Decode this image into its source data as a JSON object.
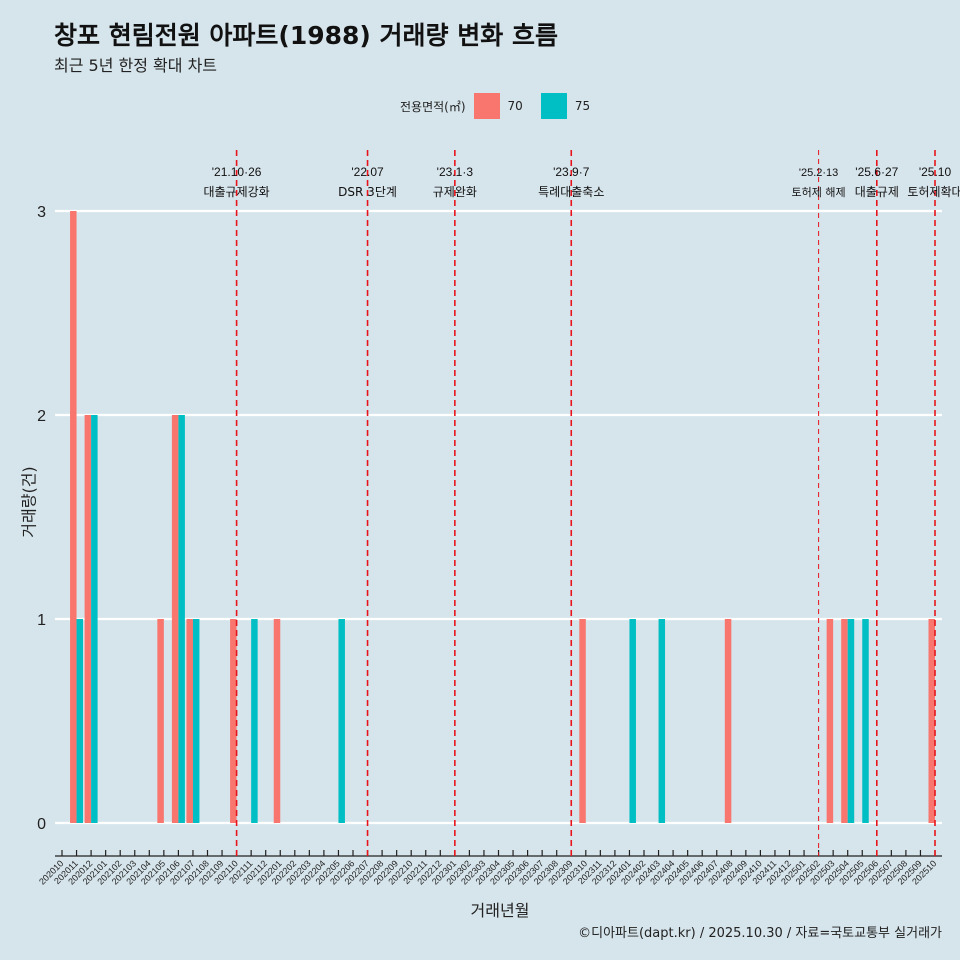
{
  "chart_data": {
    "type": "bar",
    "title": "창포 현림전원 아파트(1988) 거래량 변화 흐름",
    "subtitle": "최근 5년 한정 확대 차트",
    "xlabel": "거래년월",
    "ylabel": "거래량(건)",
    "ylim": [
      0,
      3
    ],
    "yticks": [
      "0",
      "1",
      "2",
      "3"
    ],
    "legend": {
      "title": "전용면적(㎡)",
      "placement": "top"
    },
    "categories": [
      "202010",
      "202011",
      "202012",
      "202101",
      "202102",
      "202103",
      "202104",
      "202105",
      "202106",
      "202107",
      "202108",
      "202109",
      "202110",
      "202111",
      "202112",
      "202201",
      "202202",
      "202203",
      "202204",
      "202205",
      "202206",
      "202207",
      "202208",
      "202209",
      "202210",
      "202211",
      "202212",
      "202301",
      "202302",
      "202303",
      "202304",
      "202305",
      "202306",
      "202307",
      "202308",
      "202309",
      "202310",
      "202311",
      "202312",
      "202401",
      "202402",
      "202403",
      "202404",
      "202405",
      "202406",
      "202407",
      "202408",
      "202409",
      "202410",
      "202411",
      "202412",
      "202501",
      "202502",
      "202503",
      "202504",
      "202505",
      "202506",
      "202507",
      "202508",
      "202509",
      "202510"
    ],
    "series": [
      {
        "name": "70",
        "color": "#f8766d",
        "values": [
          0,
          3,
          2,
          0,
          0,
          0,
          0,
          1,
          2,
          1,
          0,
          0,
          1,
          0,
          0,
          1,
          0,
          0,
          0,
          0,
          0,
          0,
          0,
          0,
          0,
          0,
          0,
          0,
          0,
          0,
          0,
          0,
          0,
          0,
          0,
          0,
          1,
          0,
          0,
          0,
          0,
          0,
          0,
          0,
          0,
          0,
          1,
          0,
          0,
          0,
          0,
          0,
          0,
          1,
          1,
          0,
          0,
          0,
          0,
          0,
          1
        ]
      },
      {
        "name": "75",
        "color": "#00bfc4",
        "values": [
          0,
          1,
          2,
          0,
          0,
          0,
          0,
          0,
          2,
          1,
          0,
          0,
          0,
          1,
          0,
          0,
          0,
          0,
          0,
          1,
          0,
          0,
          0,
          0,
          0,
          0,
          0,
          0,
          0,
          0,
          0,
          0,
          0,
          0,
          0,
          0,
          0,
          0,
          0,
          1,
          0,
          1,
          0,
          0,
          0,
          0,
          0,
          0,
          0,
          0,
          0,
          0,
          0,
          0,
          1,
          1,
          0,
          0,
          0,
          0,
          0
        ]
      }
    ],
    "annotations": [
      {
        "x": "202110",
        "date": "'21.10·26",
        "label": "대출규제강화",
        "style": "dashed"
      },
      {
        "x": "202207",
        "date": "'22.07",
        "label": "DSR 3단계",
        "style": "dashed"
      },
      {
        "x": "202301",
        "date": "'23.1·3",
        "label": "규제완화",
        "style": "dashed"
      },
      {
        "x": "202309",
        "date": "'23.9·7",
        "label": "특례대출축소",
        "style": "dashed"
      },
      {
        "x": "202502",
        "date": "'25.2·13",
        "label": "토허제 해제",
        "style": "thin"
      },
      {
        "x": "202506",
        "date": "'25.6·27",
        "label": "대출규제",
        "style": "dashed"
      },
      {
        "x": "202510",
        "date": "'25.10",
        "label": "토허제확대",
        "style": "dashed"
      }
    ],
    "caption": "©디아파트(dapt.kr) / 2025.10.30 / 자료=국토교통부 실거래가"
  }
}
